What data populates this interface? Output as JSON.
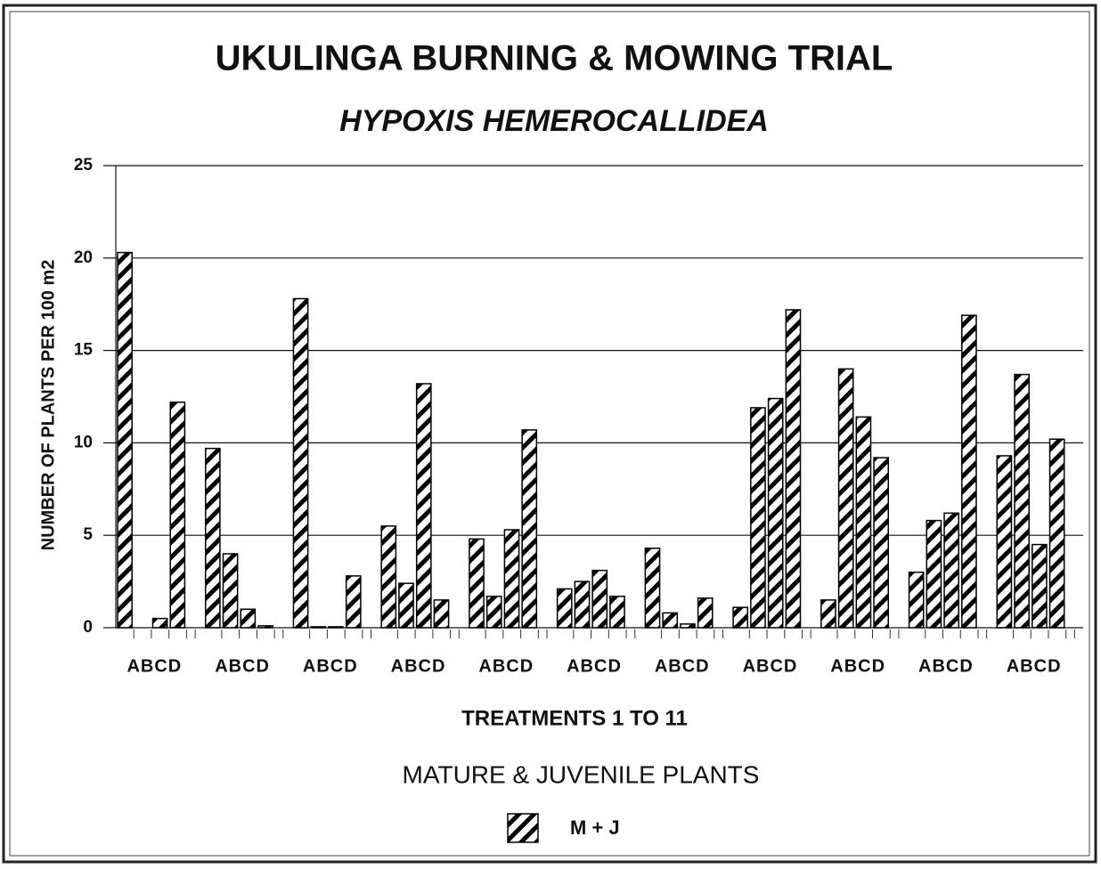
{
  "chart_data": {
    "type": "bar",
    "title": "UKULINGA BURNING & MOWING TRIAL",
    "subtitle": "HYPOXIS HEMEROCALLIDEA",
    "y_label": "NUMBER OF PLANTS PER 100 m2",
    "x_label": "TREATMENTS  1  TO  11",
    "caption": "MATURE & JUVENILE PLANTS",
    "categories": [
      "ABCD",
      "ABCD",
      "ABCD",
      "ABCD",
      "ABCD",
      "ABCD",
      "ABCD",
      "ABCD",
      "ABCD",
      "ABCD",
      "ABCD"
    ],
    "series": [
      {
        "name": "M + J",
        "color": "#000000",
        "values": [
          [
            20.3,
            0,
            0.5,
            12.2
          ],
          [
            9.7,
            4.0,
            1.0,
            0.1
          ],
          [
            17.8,
            0.05,
            0.05,
            2.8
          ],
          [
            5.5,
            2.4,
            13.2,
            1.5
          ],
          [
            4.8,
            1.7,
            5.3,
            10.7
          ],
          [
            2.1,
            2.5,
            3.1,
            1.7
          ],
          [
            4.3,
            0.8,
            0.2,
            1.6
          ],
          [
            1.1,
            11.9,
            12.4,
            17.2
          ],
          [
            1.5,
            14.0,
            11.4,
            9.2
          ],
          [
            3.0,
            5.8,
            6.2,
            16.9
          ],
          [
            9.3,
            13.7,
            4.5,
            10.2
          ]
        ]
      }
    ],
    "ylim": [
      0,
      25
    ],
    "yticks": [
      0,
      5,
      10,
      15,
      20,
      25
    ],
    "grid": true
  }
}
